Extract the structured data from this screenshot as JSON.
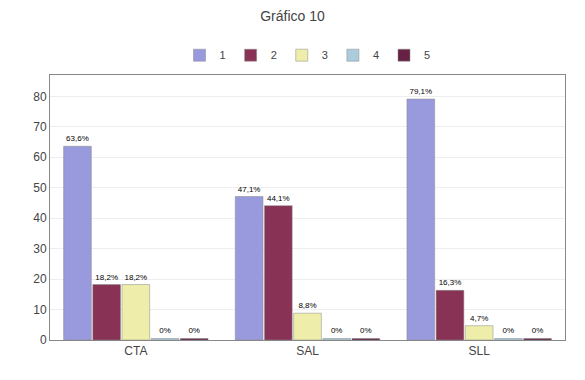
{
  "chart_data": {
    "type": "bar",
    "title": "Gráfico 10",
    "categories": [
      "CTA",
      "SAL",
      "SLL"
    ],
    "series": [
      {
        "name": "1",
        "color": "#9999dd",
        "values": [
          63.6,
          47.1,
          79.1
        ],
        "value_labels": [
          "63,6%",
          "47,1%",
          "79,1%"
        ]
      },
      {
        "name": "2",
        "color": "#883355",
        "values": [
          18.2,
          44.1,
          16.3
        ],
        "value_labels": [
          "18,2%",
          "44,1%",
          "16,3%"
        ]
      },
      {
        "name": "3",
        "color": "#eeeeaa",
        "values": [
          18.2,
          8.8,
          4.7
        ],
        "value_labels": [
          "18,2%",
          "8,8%",
          "4,7%"
        ]
      },
      {
        "name": "4",
        "color": "#aaccdd",
        "values": [
          0.5,
          0.5,
          0.5
        ],
        "value_labels": [
          "0%",
          "0%",
          "0%"
        ]
      },
      {
        "name": "5",
        "color": "#662244",
        "values": [
          0.5,
          0.5,
          0.5
        ],
        "value_labels": [
          "0%",
          "0%",
          "0%"
        ]
      }
    ],
    "ylim": [
      0,
      87
    ],
    "yticks": [
      0,
      10,
      20,
      30,
      40,
      50,
      60,
      70,
      80
    ],
    "grid": true,
    "legend": "top",
    "data_labels": true
  }
}
